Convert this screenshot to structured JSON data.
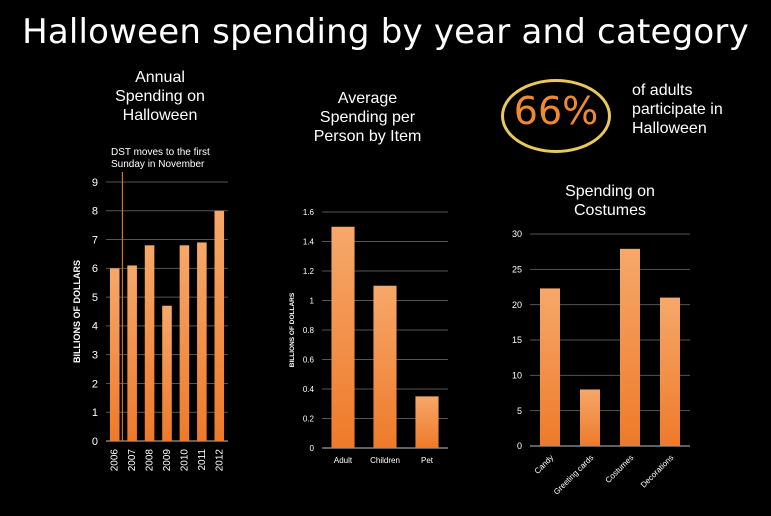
{
  "title": "Halloween spending by year and category",
  "stat": {
    "value": "66%",
    "text": "of adults\nparticipate in\nHalloween",
    "ring_color": "#e8c95a",
    "value_color": "#f08a2e"
  },
  "colors": {
    "bar": "#ee7a2a",
    "bar_light": "#f6a86a",
    "axis": "#bfbfbf",
    "grid": "#555555",
    "background": "#000000"
  },
  "chart_data": [
    {
      "type": "bar",
      "title": "Annual\nSpending on\nHalloween",
      "ylabel": "BILLIONS OF DOLLARS",
      "xlabel": "",
      "categories": [
        "2006",
        "2007",
        "2008",
        "2009",
        "2010",
        "2011",
        "2012"
      ],
      "values": [
        6.0,
        6.1,
        6.8,
        4.7,
        6.8,
        6.9,
        8.0
      ],
      "ylim": [
        0,
        9
      ],
      "yticks": [
        0,
        1,
        2,
        3,
        4,
        5,
        6,
        7,
        8,
        9
      ],
      "grid": true,
      "annotation": {
        "text": "DST moves to the first\nSunday in November",
        "x": "2006.5"
      }
    },
    {
      "type": "bar",
      "title": "Average\nSpending per\nPerson by Item",
      "ylabel": "BILLIONS OF DOLLARS",
      "xlabel": "",
      "categories": [
        "Adult",
        "Children",
        "Pet"
      ],
      "values": [
        1.5,
        1.1,
        0.35
      ],
      "ylim": [
        0,
        1.6
      ],
      "yticks": [
        "0",
        "0.2",
        "0.4",
        "0.6",
        "0.8",
        "1",
        "1.2",
        "1.4",
        "1.6"
      ],
      "grid": true
    },
    {
      "type": "bar",
      "title": "Spending on\nCostumes",
      "ylabel": "",
      "xlabel": "",
      "categories": [
        "Candy",
        "Greeting cards",
        "Costumes",
        "Decorations"
      ],
      "values": [
        22.3,
        8.0,
        27.9,
        21.0
      ],
      "ylim": [
        0,
        30
      ],
      "yticks": [
        0,
        5,
        10,
        15,
        20,
        25,
        30
      ],
      "grid": true
    }
  ]
}
